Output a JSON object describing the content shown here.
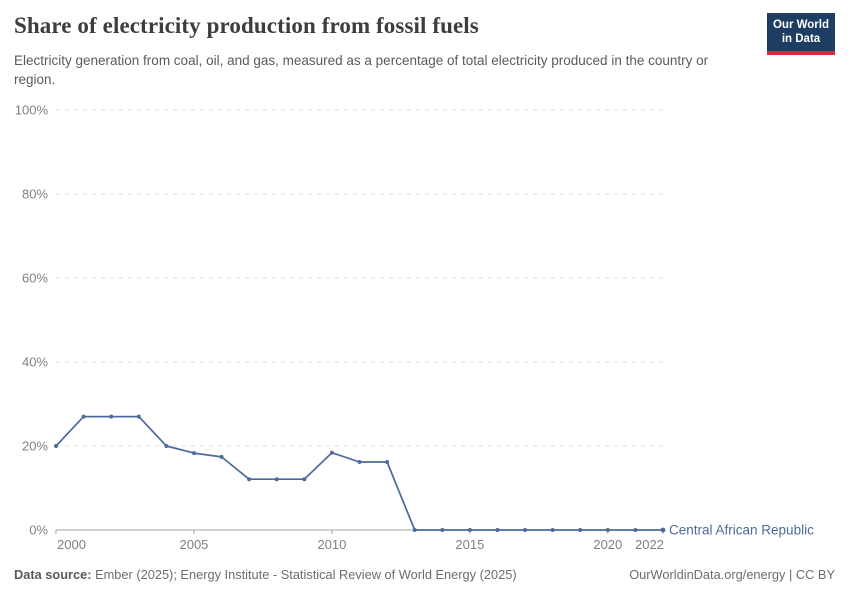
{
  "logo": {
    "lines": [
      "Our World",
      "in Data"
    ],
    "bg_color": "#1d3d63",
    "accent_color": "#cf2e41"
  },
  "chart_data": {
    "type": "line",
    "title": "Share of electricity production from fossil fuels",
    "subtitle": "Electricity generation from coal, oil, and gas, measured as a percentage of total electricity produced in the country or region.",
    "xlabel": "",
    "ylabel": "",
    "unit": "%",
    "xlim": [
      2000,
      2022
    ],
    "ylim": [
      0,
      100
    ],
    "grid": "horizontal-dashed",
    "legend_position": "end-of-line-label",
    "x": [
      2000,
      2001,
      2002,
      2003,
      2004,
      2005,
      2006,
      2007,
      2008,
      2009,
      2010,
      2011,
      2012,
      2013,
      2014,
      2015,
      2016,
      2017,
      2018,
      2019,
      2020,
      2021,
      2022
    ],
    "series": [
      {
        "name": "Central African Republic",
        "color": "#4C6A9C",
        "values": [
          20,
          27,
          27,
          27,
          20,
          18.3,
          17.4,
          12.1,
          12.1,
          12.1,
          18.4,
          16.2,
          16.2,
          0,
          0,
          0,
          0,
          0,
          0,
          0,
          0,
          0,
          0
        ]
      }
    ],
    "xticks": [
      2000,
      2005,
      2010,
      2015,
      2020,
      2022
    ],
    "xtick_labels": [
      "2000",
      "2005",
      "2010",
      "2015",
      "2020",
      "2022"
    ],
    "yticks": [
      0,
      20,
      40,
      60,
      80,
      100
    ],
    "ytick_labels": [
      "0%",
      "20%",
      "40%",
      "60%",
      "80%",
      "100%"
    ],
    "axis_color": "#a5a5a5",
    "gridline_color": "#dcdcdc",
    "tick_label_color": "#818181"
  },
  "footer": {
    "datasource_label": "Data source:",
    "datasource_text": " Ember (2025); Energy Institute - Statistical Review of World Energy (2025)",
    "right": "OurWorldinData.org/energy | CC BY"
  }
}
